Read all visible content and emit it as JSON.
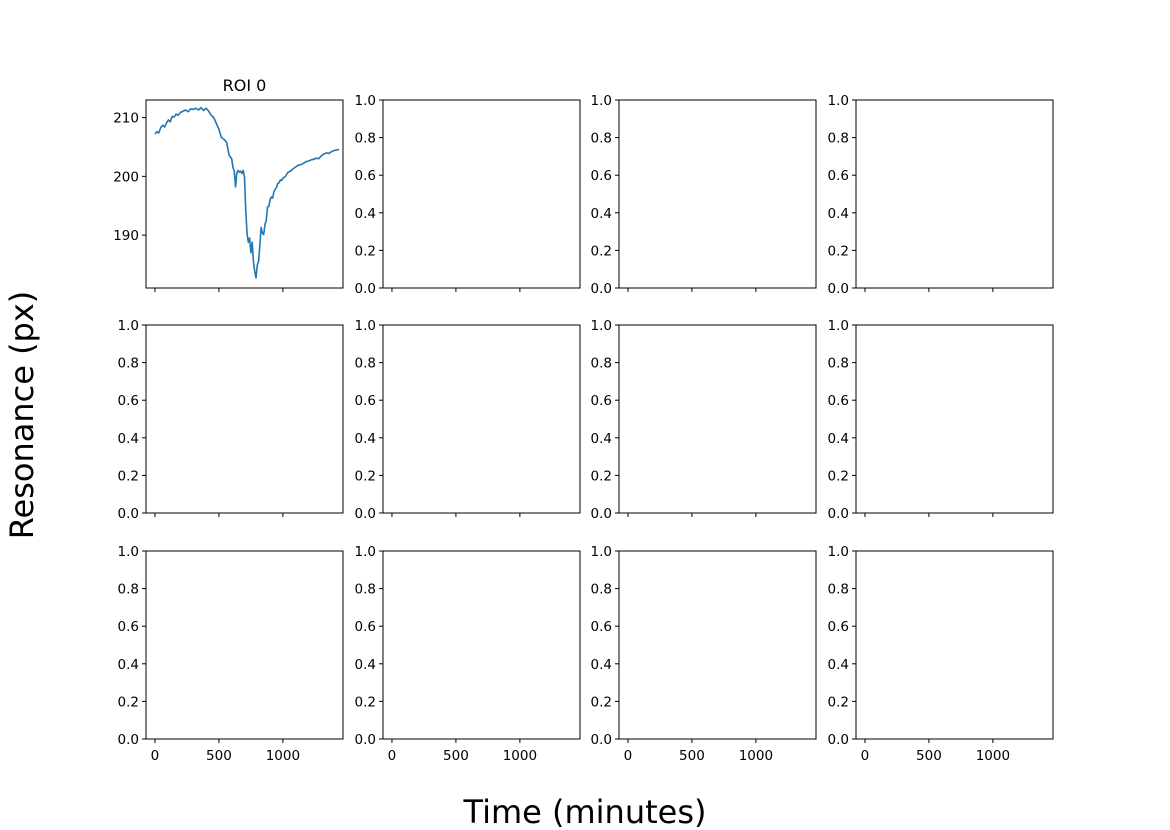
{
  "figure": {
    "supxlabel": "Time (minutes)",
    "supylabel": "Resonance (px)",
    "rows": 3,
    "cols": 4,
    "sharex": true
  },
  "chart_data": [
    {
      "type": "line",
      "title": "ROI 0",
      "xlabel": "",
      "ylabel": "",
      "xlim": [
        -70,
        1470
      ],
      "ylim": [
        181,
        213
      ],
      "xticks": [
        0,
        500,
        1000
      ],
      "yticks": [
        190,
        200,
        210
      ],
      "grid": false,
      "color": "#1f77b4",
      "series": [
        {
          "x": [
            0,
            15,
            30,
            45,
            60,
            75,
            90,
            105,
            120,
            135,
            150,
            165,
            180,
            200,
            220,
            240,
            260,
            280,
            300,
            320,
            340,
            360,
            380,
            400,
            420,
            440,
            460,
            480,
            500,
            520,
            540,
            560,
            580,
            600,
            610,
            620,
            630,
            640,
            650,
            660,
            670,
            680,
            690,
            700,
            710,
            720,
            730,
            740,
            750,
            760,
            770,
            780,
            790,
            800,
            810,
            820,
            830,
            840,
            850,
            860,
            870,
            880,
            890,
            900,
            910,
            920,
            930,
            940,
            950,
            960,
            970,
            980,
            990,
            1000,
            1020,
            1040,
            1060,
            1080,
            1100,
            1120,
            1140,
            1160,
            1180,
            1200,
            1220,
            1240,
            1260,
            1280,
            1300,
            1320,
            1340,
            1360,
            1380,
            1400,
            1420,
            1440
          ],
          "y": [
            207.2,
            207.6,
            207.4,
            208.3,
            208.7,
            208.4,
            209.1,
            209.6,
            209.3,
            210.2,
            210.1,
            210.6,
            210.4,
            210.9,
            211.1,
            211.3,
            211.0,
            211.5,
            211.4,
            211.6,
            211.3,
            211.7,
            211.2,
            211.6,
            211.1,
            210.4,
            210.0,
            209.0,
            208.0,
            206.6,
            206.3,
            205.8,
            203.6,
            203.0,
            201.5,
            200.9,
            198.2,
            200.6,
            201.0,
            200.7,
            200.9,
            200.5,
            201.0,
            199.8,
            194.2,
            190.3,
            188.8,
            189.5,
            187.0,
            188.8,
            185.5,
            183.8,
            182.7,
            184.9,
            185.5,
            188.3,
            191.3,
            190.3,
            190.1,
            191.8,
            192.5,
            194.8,
            194.9,
            196.0,
            196.5,
            196.3,
            197.4,
            197.8,
            198.1,
            198.8,
            198.9,
            199.4,
            199.3,
            199.7,
            200.0,
            200.7,
            200.9,
            201.3,
            201.6,
            201.9,
            202.0,
            202.2,
            202.5,
            202.6,
            202.8,
            202.9,
            203.1,
            203.0,
            203.5,
            203.8,
            204.0,
            203.9,
            204.2,
            204.4,
            204.5,
            204.6
          ]
        }
      ]
    },
    {
      "type": "line",
      "title": "",
      "xlim": [
        -70,
        1470
      ],
      "ylim": [
        0,
        1
      ],
      "xticks": [
        0,
        500,
        1000
      ],
      "yticks": [
        0.0,
        0.2,
        0.4,
        0.6,
        0.8,
        1.0
      ],
      "series": []
    },
    {
      "type": "line",
      "title": "",
      "xlim": [
        -70,
        1470
      ],
      "ylim": [
        0,
        1
      ],
      "xticks": [
        0,
        500,
        1000
      ],
      "yticks": [
        0.0,
        0.2,
        0.4,
        0.6,
        0.8,
        1.0
      ],
      "series": []
    },
    {
      "type": "line",
      "title": "",
      "xlim": [
        -70,
        1470
      ],
      "ylim": [
        0,
        1
      ],
      "xticks": [
        0,
        500,
        1000
      ],
      "yticks": [
        0.0,
        0.2,
        0.4,
        0.6,
        0.8,
        1.0
      ],
      "series": []
    },
    {
      "type": "line",
      "title": "",
      "xlim": [
        -70,
        1470
      ],
      "ylim": [
        0,
        1
      ],
      "xticks": [
        0,
        500,
        1000
      ],
      "yticks": [
        0.0,
        0.2,
        0.4,
        0.6,
        0.8,
        1.0
      ],
      "series": []
    },
    {
      "type": "line",
      "title": "",
      "xlim": [
        -70,
        1470
      ],
      "ylim": [
        0,
        1
      ],
      "xticks": [
        0,
        500,
        1000
      ],
      "yticks": [
        0.0,
        0.2,
        0.4,
        0.6,
        0.8,
        1.0
      ],
      "series": []
    },
    {
      "type": "line",
      "title": "",
      "xlim": [
        -70,
        1470
      ],
      "ylim": [
        0,
        1
      ],
      "xticks": [
        0,
        500,
        1000
      ],
      "yticks": [
        0.0,
        0.2,
        0.4,
        0.6,
        0.8,
        1.0
      ],
      "series": []
    },
    {
      "type": "line",
      "title": "",
      "xlim": [
        -70,
        1470
      ],
      "ylim": [
        0,
        1
      ],
      "xticks": [
        0,
        500,
        1000
      ],
      "yticks": [
        0.0,
        0.2,
        0.4,
        0.6,
        0.8,
        1.0
      ],
      "series": []
    },
    {
      "type": "line",
      "title": "",
      "xlim": [
        -70,
        1470
      ],
      "ylim": [
        0,
        1
      ],
      "xticks": [
        0,
        500,
        1000
      ],
      "yticks": [
        0.0,
        0.2,
        0.4,
        0.6,
        0.8,
        1.0
      ],
      "series": []
    },
    {
      "type": "line",
      "title": "",
      "xlim": [
        -70,
        1470
      ],
      "ylim": [
        0,
        1
      ],
      "xticks": [
        0,
        500,
        1000
      ],
      "yticks": [
        0.0,
        0.2,
        0.4,
        0.6,
        0.8,
        1.0
      ],
      "series": []
    },
    {
      "type": "line",
      "title": "",
      "xlim": [
        -70,
        1470
      ],
      "ylim": [
        0,
        1
      ],
      "xticks": [
        0,
        500,
        1000
      ],
      "yticks": [
        0.0,
        0.2,
        0.4,
        0.6,
        0.8,
        1.0
      ],
      "series": []
    },
    {
      "type": "line",
      "title": "",
      "xlim": [
        -70,
        1470
      ],
      "ylim": [
        0,
        1
      ],
      "xticks": [
        0,
        500,
        1000
      ],
      "yticks": [
        0.0,
        0.2,
        0.4,
        0.6,
        0.8,
        1.0
      ],
      "series": []
    }
  ]
}
